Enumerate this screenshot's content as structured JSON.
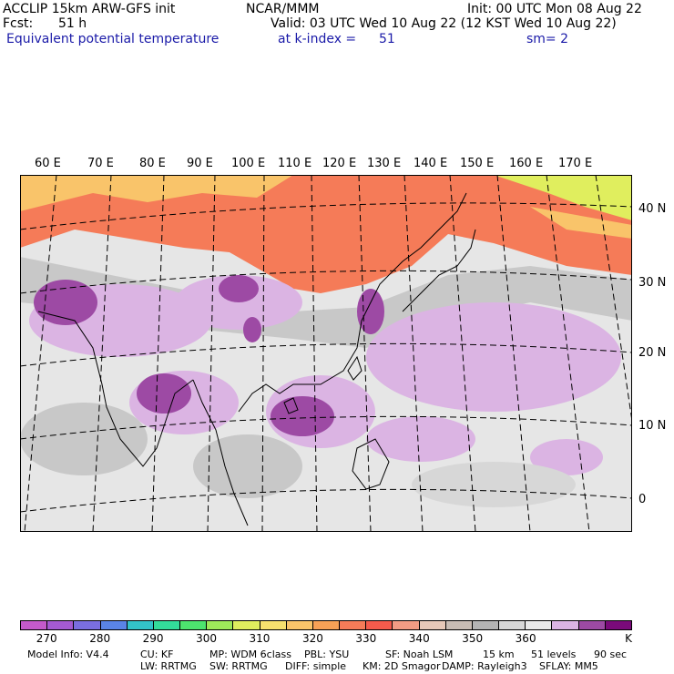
{
  "header": {
    "model": "ACCLIP 15km ARW-GFS init",
    "center": "NCAR/MMM",
    "init": "Init: 00 UTC Mon 08 Aug 22",
    "fcst_label": "Fcst:",
    "fcst_value": "51 h",
    "valid": "Valid: 03 UTC Wed 10 Aug 22 (12 KST Wed 10 Aug 22)",
    "field": "Equivalent potential temperature",
    "level": "at k-index =",
    "level_value": "51",
    "smooth": "sm= 2"
  },
  "map": {
    "longitude_labels": [
      "60 E",
      "70 E",
      "80 E",
      "90 E",
      "100 E",
      "110 E",
      "120 E",
      "130 E",
      "140 E",
      "150 E",
      "160 E",
      "170 E"
    ],
    "latitude_labels": [
      "40 N",
      "30 N",
      "20 N",
      "10 N",
      "0"
    ]
  },
  "colorbar": {
    "colors": [
      "#c45acb",
      "#a55ad2",
      "#7a6ee0",
      "#5a84e6",
      "#33c2c8",
      "#33dc9a",
      "#4de46e",
      "#9ee85a",
      "#e0ee5e",
      "#f7e06e",
      "#f9c46a",
      "#f7a156",
      "#f57b58",
      "#f45b4c",
      "#f29c84",
      "#e6c8b8",
      "#c8bcb4",
      "#b4b4b4",
      "#d7d7d7",
      "#e8e8e8",
      "#dbb4e3",
      "#9d4aa4",
      "#7a0a7a"
    ],
    "tick_labels": [
      "270",
      "280",
      "290",
      "300",
      "310",
      "320",
      "330",
      "340",
      "350",
      "360"
    ],
    "unit": "K"
  },
  "footer": {
    "line1": [
      "Model Info: V4.4",
      "CU: KF",
      "MP: WDM 6class",
      "PBL: YSU",
      "SF: Noah LSM",
      "15 km",
      "51 levels",
      "90 sec"
    ],
    "line2": [
      "LW: RRTMG",
      "SW: RRTMG",
      "DIFF: simple",
      "KM: 2D Smagor",
      "DAMP: Rayleigh3",
      "SFLAY: MM5"
    ]
  }
}
